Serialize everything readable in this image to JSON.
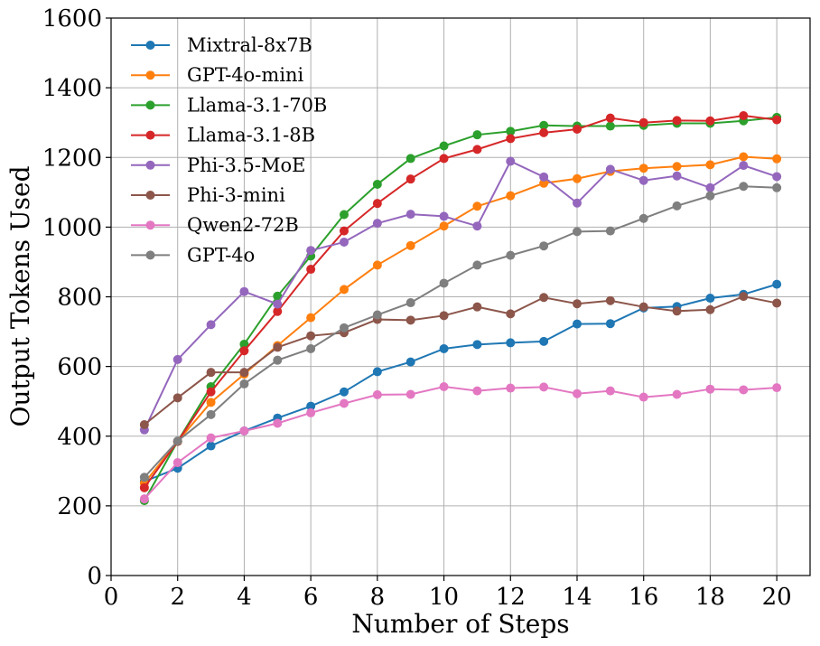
{
  "chart_data": {
    "type": "line",
    "title": "",
    "xlabel": "Number of Steps",
    "ylabel": "Output Tokens Used",
    "xlim": [
      0,
      21
    ],
    "ylim": [
      0,
      1600
    ],
    "xticks": [
      "0",
      "2",
      "4",
      "6",
      "8",
      "10",
      "12",
      "14",
      "16",
      "18",
      "20"
    ],
    "yticks": [
      "0",
      "200",
      "400",
      "600",
      "800",
      "1000",
      "1200",
      "1400",
      "1600"
    ],
    "grid": true,
    "legend_position": "top-left",
    "x": [
      1,
      2,
      3,
      4,
      5,
      6,
      7,
      8,
      9,
      10,
      11,
      12,
      13,
      14,
      15,
      16,
      17,
      18,
      19,
      20
    ],
    "series": [
      {
        "name": "Mixtral-8x7B",
        "color": "#1f77b4",
        "values": [
          270,
          308,
          372,
          415,
          452,
          486,
          527,
          585,
          613,
          651,
          663,
          668,
          672,
          722,
          723,
          768,
          772,
          796,
          807,
          836
        ]
      },
      {
        "name": "GPT-4o-mini",
        "color": "#ff7f0e",
        "values": [
          265,
          385,
          497,
          578,
          660,
          740,
          821,
          891,
          947,
          1003,
          1060,
          1090,
          1126,
          1139,
          1160,
          1169,
          1174,
          1179,
          1202,
          1196
        ]
      },
      {
        "name": "Llama-3.1-70B",
        "color": "#2ca02c",
        "values": [
          215,
          385,
          542,
          664,
          802,
          917,
          1036,
          1123,
          1197,
          1233,
          1265,
          1275,
          1292,
          1290,
          1290,
          1292,
          1298,
          1298,
          1305,
          1315
        ]
      },
      {
        "name": "Llama-3.1-8B",
        "color": "#d62728",
        "values": [
          252,
          385,
          527,
          645,
          758,
          879,
          989,
          1068,
          1138,
          1197,
          1223,
          1254,
          1271,
          1281,
          1313,
          1300,
          1306,
          1305,
          1320,
          1308
        ]
      },
      {
        "name": "Phi-3.5-MoE",
        "color": "#9467bd",
        "values": [
          418,
          620,
          720,
          815,
          779,
          933,
          957,
          1011,
          1037,
          1031,
          1003,
          1189,
          1144,
          1069,
          1166,
          1134,
          1147,
          1113,
          1177,
          1145
        ]
      },
      {
        "name": "Phi-3-mini",
        "color": "#8c564b",
        "values": [
          433,
          510,
          583,
          583,
          655,
          688,
          697,
          735,
          733,
          746,
          771,
          751,
          798,
          780,
          789,
          771,
          759,
          763,
          801,
          782
        ]
      },
      {
        "name": "Qwen2-72B",
        "color": "#e377c2",
        "values": [
          220,
          324,
          395,
          415,
          437,
          467,
          494,
          519,
          520,
          542,
          530,
          538,
          541,
          522,
          530,
          512,
          520,
          535,
          533,
          539
        ]
      },
      {
        "name": "GPT-4o",
        "color": "#7f7f7f",
        "values": [
          282,
          386,
          462,
          550,
          618,
          651,
          711,
          748,
          783,
          839,
          891,
          919,
          946,
          987,
          989,
          1025,
          1061,
          1090,
          1117,
          1113
        ]
      }
    ]
  }
}
